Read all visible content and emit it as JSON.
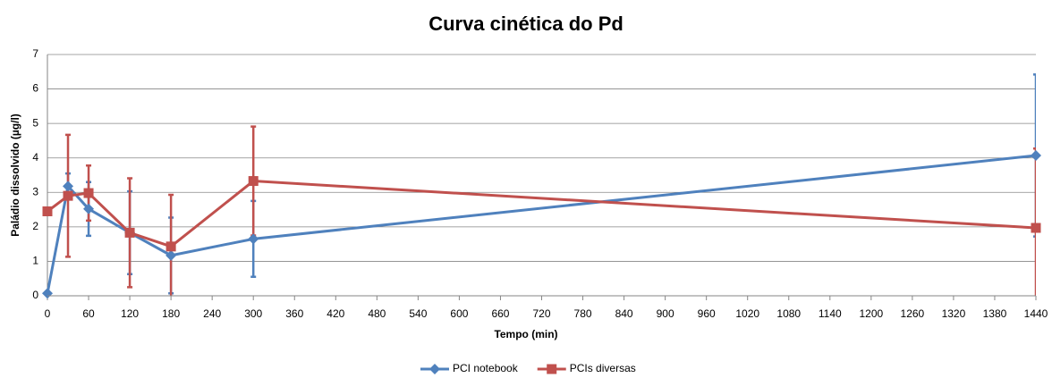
{
  "chart_data": {
    "type": "line",
    "title": "Curva cinética do Pd",
    "x_label": "Tempo (min)",
    "y_label": "Paládio dissolvido (µg/l)",
    "xlim": [
      0,
      1440
    ],
    "xticks": [
      0,
      60,
      120,
      180,
      240,
      300,
      360,
      420,
      480,
      540,
      600,
      660,
      720,
      780,
      840,
      900,
      960,
      1020,
      1080,
      1140,
      1200,
      1260,
      1320,
      1380,
      1440
    ],
    "ylim": [
      0,
      7
    ],
    "yticks": [
      0,
      1,
      2,
      3,
      4,
      5,
      6,
      7
    ],
    "grid": true,
    "legend": "bottom",
    "series": [
      {
        "name": "PCI notebook",
        "color": "#4f81bd",
        "marker": "diamond",
        "x": [
          0,
          30,
          60,
          120,
          180,
          300,
          1440
        ],
        "values": [
          0.07,
          3.18,
          2.52,
          1.83,
          1.17,
          1.65,
          4.07
        ],
        "errors": [
          0,
          0.37,
          0.78,
          1.2,
          1.1,
          1.1,
          2.35
        ]
      },
      {
        "name": "PCIs diversas",
        "color": "#c0504d",
        "marker": "square",
        "x": [
          0,
          30,
          60,
          120,
          180,
          300,
          1440
        ],
        "values": [
          2.45,
          2.9,
          2.98,
          1.83,
          1.43,
          3.33,
          1.97
        ],
        "errors": [
          0,
          1.77,
          0.8,
          1.58,
          1.5,
          1.58,
          2.3
        ]
      }
    ]
  }
}
